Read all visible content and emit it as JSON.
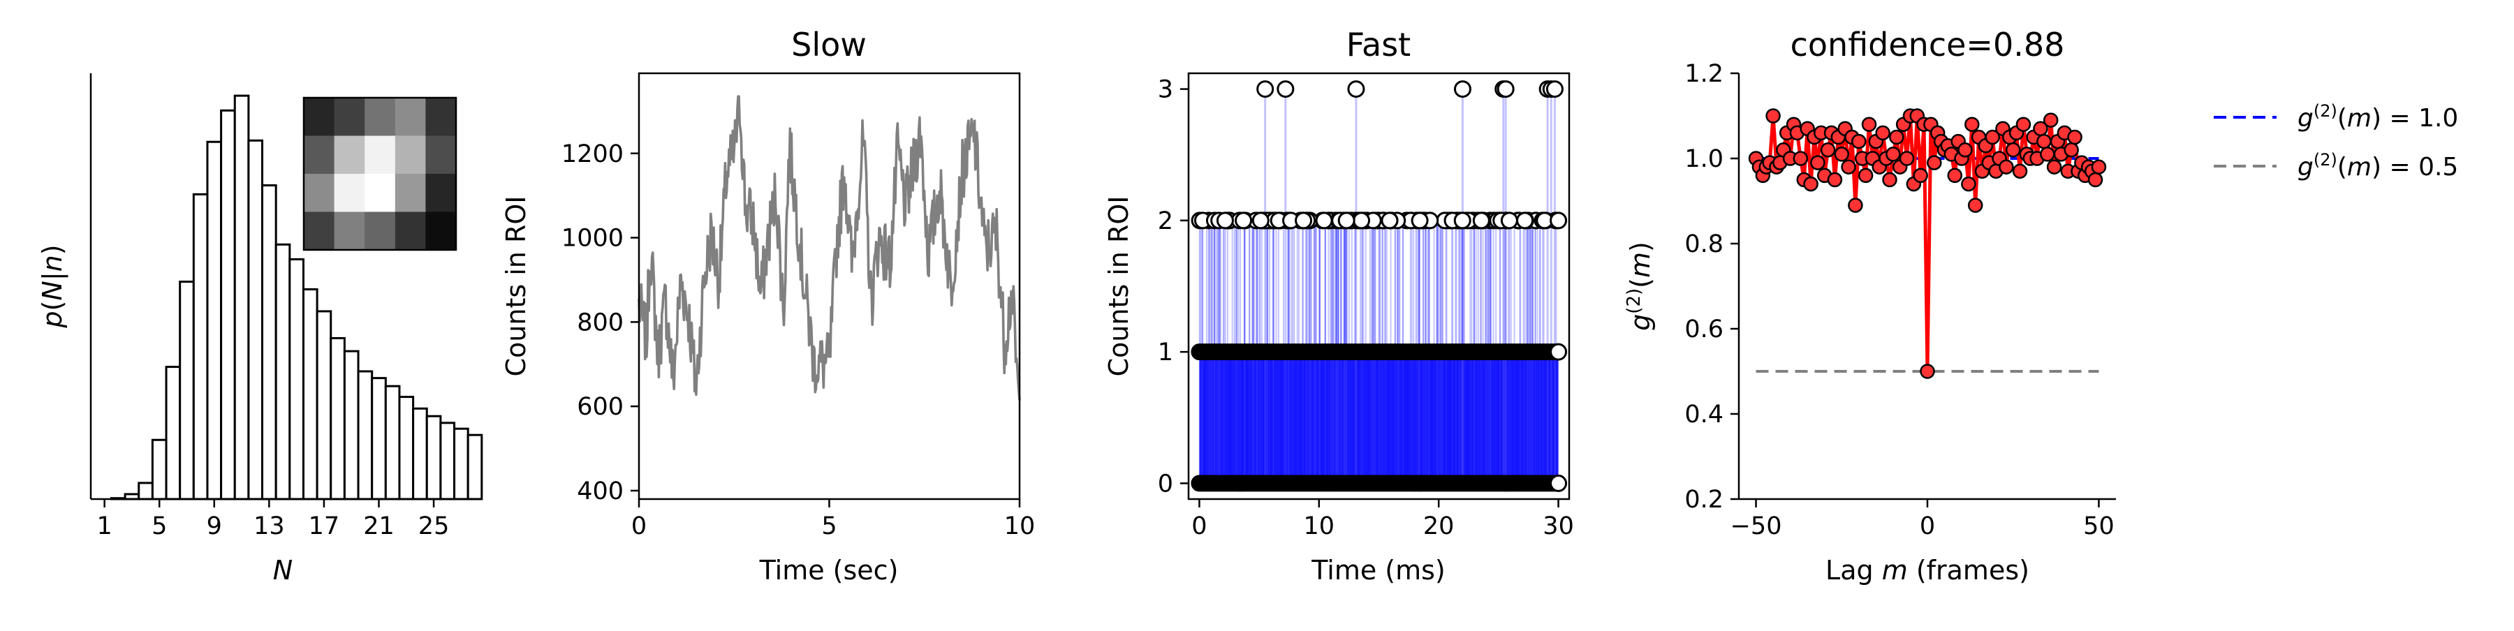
{
  "figure": {
    "panel_titles": [
      "",
      "Slow",
      "Fast",
      "confidence=0.88"
    ]
  },
  "chart_data": [
    {
      "type": "bar",
      "title": "",
      "xlabel": "N",
      "ylabel": "p(N|n)",
      "xticks": [
        "1",
        "5",
        "9",
        "13",
        "17",
        "21",
        "25"
      ],
      "xlim": [
        0,
        28
      ],
      "ylim": [
        0,
        0.095
      ],
      "edge_color": "#000000",
      "fill_color": "#ffffff",
      "categories": [
        1,
        2,
        3,
        4,
        5,
        6,
        7,
        8,
        9,
        10,
        11,
        12,
        13,
        14,
        15,
        16,
        17,
        18,
        19,
        20,
        21,
        22,
        23,
        24,
        25,
        26,
        27,
        28
      ],
      "values": [
        0.0,
        0.0002,
        0.0011,
        0.0036,
        0.0132,
        0.0295,
        0.0485,
        0.068,
        0.0797,
        0.0867,
        0.09,
        0.08,
        0.07,
        0.0568,
        0.0535,
        0.0468,
        0.0419,
        0.0359,
        0.033,
        0.0285,
        0.027,
        0.0252,
        0.0228,
        0.0202,
        0.0185,
        0.017,
        0.0157,
        0.0143
      ],
      "inset_image": {
        "type": "heatmap",
        "colormap": "gray",
        "values": [
          [
            0.15,
            0.25,
            0.45,
            0.55,
            0.2
          ],
          [
            0.35,
            0.75,
            0.95,
            0.7,
            0.3
          ],
          [
            0.55,
            0.95,
            1.0,
            0.6,
            0.15
          ],
          [
            0.25,
            0.5,
            0.4,
            0.2,
            0.05
          ]
        ]
      }
    },
    {
      "type": "line",
      "title": "Slow",
      "xlabel": "Time (sec)",
      "ylabel": "Counts in ROI",
      "xlim": [
        0,
        10
      ],
      "ylim": [
        380,
        1390
      ],
      "xticks": [
        0,
        5,
        10
      ],
      "yticks": [
        400,
        600,
        800,
        1000,
        1200
      ],
      "color": "#808080",
      "keypoints_x": [
        0.0,
        0.2,
        0.3,
        0.5,
        0.7,
        0.9,
        1.1,
        1.3,
        1.5,
        1.7,
        1.9,
        2.1,
        2.3,
        2.5,
        2.65,
        2.8,
        3.0,
        3.2,
        3.4,
        3.6,
        3.8,
        3.95,
        4.1,
        4.3,
        4.6,
        5.0,
        5.2,
        5.4,
        5.6,
        5.75,
        5.9,
        6.1,
        6.3,
        6.6,
        6.8,
        7.0,
        7.2,
        7.4,
        7.6,
        7.9,
        8.2,
        8.5,
        8.8,
        9.1,
        9.4,
        9.6,
        9.8,
        10.0
      ],
      "keypoints_y": [
        840,
        760,
        980,
        720,
        850,
        660,
        900,
        820,
        640,
        890,
        1010,
        900,
        1150,
        1200,
        1320,
        1070,
        1040,
        860,
        1000,
        1110,
        820,
        1220,
        1100,
        920,
        700,
        700,
        990,
        1160,
        930,
        1100,
        1230,
        840,
        1000,
        940,
        1210,
        1070,
        1160,
        1250,
        960,
        1120,
        880,
        1160,
        1250,
        970,
        1010,
        750,
        870,
        580
      ],
      "noise_amplitude": 75,
      "n_points": 500
    },
    {
      "type": "scatter",
      "title": "Fast",
      "xlabel": "Time (ms)",
      "ylabel": "Counts in ROI",
      "xlim": [
        -0.9,
        30.9
      ],
      "ylim": [
        -0.12,
        3.12
      ],
      "xticks": [
        0,
        10,
        20,
        30
      ],
      "yticks": [
        0,
        1,
        2,
        3
      ],
      "stem_color": "#0000ff",
      "marker_edge": "#000000",
      "marker_face": "#ffffff",
      "value_3_times": [
        5.5,
        7.2,
        13.1,
        22.0,
        25.4,
        25.6,
        29.1,
        29.4,
        29.7
      ],
      "value_2_fraction": 0.12,
      "value_1_fraction": 0.55,
      "n_points": 3000
    },
    {
      "type": "line",
      "title": "confidence=0.88",
      "xlabel": "Lag m (frames)",
      "ylabel": "g(2)(m)",
      "xlim": [
        -55,
        55
      ],
      "ylim": [
        0.2,
        1.2
      ],
      "xticks": [
        -50,
        0,
        50
      ],
      "yticks": [
        0.2,
        0.4,
        0.6,
        0.8,
        1.0,
        1.2
      ],
      "legend_position": "outside right",
      "reference_lines": [
        {
          "name": "g(2)(m) = 1.0",
          "y": 1.0,
          "color": "#0000ff",
          "style": "dashed"
        },
        {
          "name": "g(2)(m) = 0.5",
          "y": 0.5,
          "color": "#808080",
          "style": "dashed"
        }
      ],
      "series_color": "#ff0000",
      "x": [
        -50,
        -49,
        -48,
        -47,
        -46,
        -45,
        -44,
        -43,
        -42,
        -41,
        -40,
        -39,
        -38,
        -37,
        -36,
        -35,
        -34,
        -33,
        -32,
        -31,
        -30,
        -29,
        -28,
        -27,
        -26,
        -25,
        -24,
        -23,
        -22,
        -21,
        -20,
        -19,
        -18,
        -17,
        -16,
        -15,
        -14,
        -13,
        -12,
        -11,
        -10,
        -9,
        -8,
        -7,
        -6,
        -5,
        -4,
        -3,
        -2,
        -1,
        0,
        1,
        2,
        3,
        4,
        5,
        6,
        7,
        8,
        9,
        10,
        11,
        12,
        13,
        14,
        15,
        16,
        17,
        18,
        19,
        20,
        21,
        22,
        23,
        24,
        25,
        26,
        27,
        28,
        29,
        30,
        31,
        32,
        33,
        34,
        35,
        36,
        37,
        38,
        39,
        40,
        41,
        42,
        43,
        44,
        45,
        46,
        47,
        48,
        49,
        50
      ],
      "y": [
        1.0,
        0.98,
        0.96,
        0.98,
        0.99,
        1.1,
        0.98,
        0.99,
        1.02,
        1.06,
        1.0,
        1.08,
        1.06,
        1.0,
        0.95,
        1.07,
        0.94,
        1.05,
        0.99,
        1.06,
        0.96,
        1.02,
        1.06,
        0.95,
        1.05,
        1.01,
        1.07,
        0.98,
        1.05,
        0.89,
        1.04,
        1.0,
        0.96,
        1.08,
        1.0,
        1.04,
        0.98,
        1.06,
        1.0,
        0.95,
        1.01,
        1.05,
        0.98,
        1.08,
        1.0,
        1.1,
        0.94,
        1.1,
        0.96,
        1.08,
        0.5,
        1.08,
        0.99,
        1.06,
        1.04,
        1.02,
        1.03,
        1.01,
        0.96,
        1.04,
        1.0,
        1.02,
        0.94,
        1.08,
        0.89,
        1.05,
        0.97,
        1.03,
        0.99,
        1.05,
        0.97,
        1.0,
        1.07,
        0.98,
        1.05,
        1.02,
        1.06,
        0.97,
        1.08,
        1.01,
        1.0,
        1.05,
        1.0,
        1.07,
        1.04,
        1.01,
        1.09,
        0.98,
        1.04,
        1.01,
        1.06,
        0.97,
        1.02,
        1.05,
        0.97,
        0.99,
        0.96,
        0.98,
        0.97,
        0.95,
        0.98
      ]
    }
  ]
}
